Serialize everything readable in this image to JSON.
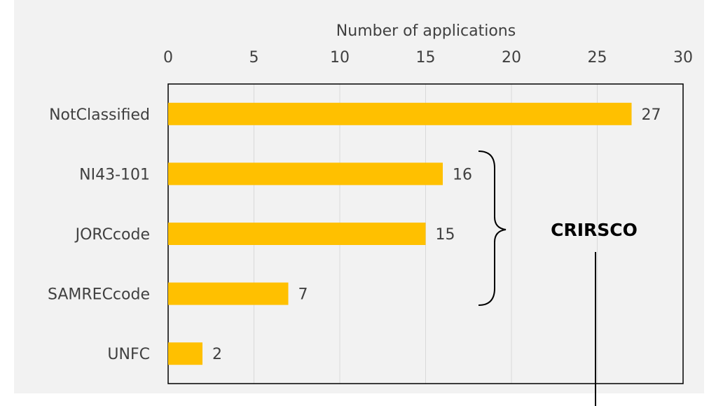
{
  "chart_data": {
    "type": "bar",
    "orientation": "horizontal",
    "x_label": "Number of applications",
    "categories": [
      "NotClassified",
      "NI43-101",
      "JORCcode",
      "SAMRECcode",
      "UNFC"
    ],
    "values": [
      27,
      16,
      15,
      7,
      2
    ],
    "color": "#ffc000",
    "xlim": [
      0,
      30
    ],
    "xticks": [
      0,
      5,
      10,
      15,
      20,
      25,
      30
    ],
    "grid": true,
    "annotation": "CRIRSCO"
  }
}
